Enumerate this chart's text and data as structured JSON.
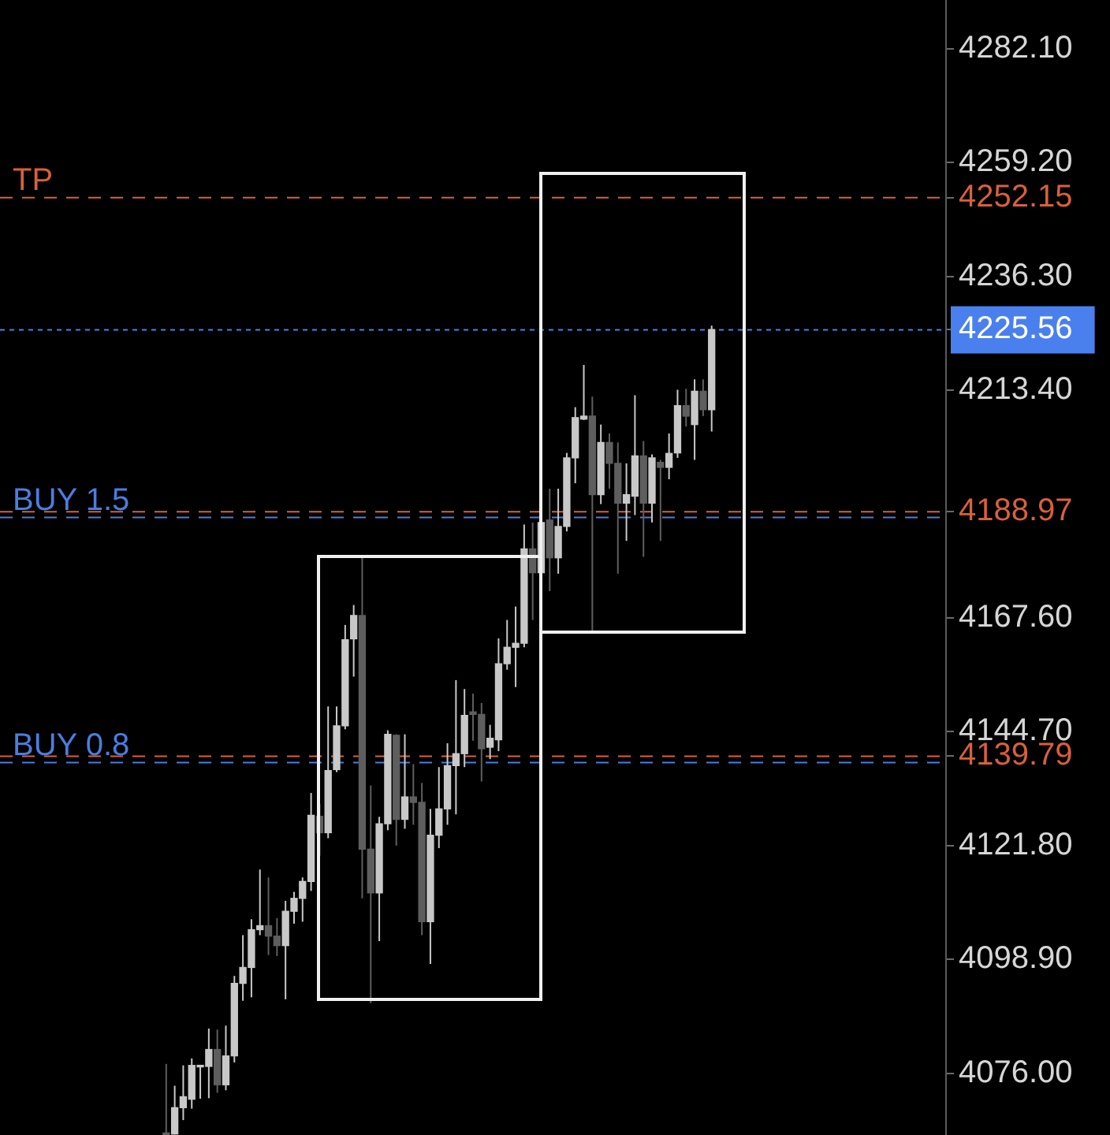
{
  "chart_data": {
    "type": "candlestick",
    "categories": [
      null,
      null,
      null,
      null,
      null,
      null,
      null,
      null,
      null,
      null,
      null,
      null,
      null,
      null,
      null,
      null,
      null,
      null,
      null,
      null,
      null,
      null,
      null,
      null,
      null,
      null,
      null,
      null,
      null,
      null,
      null,
      null,
      null,
      null,
      null,
      null,
      null,
      null,
      null,
      null,
      null,
      null,
      null,
      null,
      null,
      null,
      null,
      null,
      null,
      null,
      null,
      null,
      null,
      null,
      null,
      null,
      null,
      null,
      null,
      null,
      null,
      null,
      null,
      null,
      null,
      null,
      null,
      null,
      null,
      null,
      null,
      null,
      null,
      null,
      null,
      null,
      null,
      null,
      null,
      null,
      null,
      null,
      null,
      null,
      null,
      null,
      null,
      null,
      null,
      null,
      null,
      null,
      null,
      null,
      null,
      null,
      null,
      null,
      null,
      null,
      null,
      null,
      null,
      null,
      null,
      null,
      null,
      null,
      null,
      null,
      null
    ],
    "ohlc": [
      null,
      null,
      null,
      null,
      null,
      null,
      null,
      null,
      null,
      null,
      null,
      null,
      null,
      null,
      null,
      null,
      null,
      null,
      null,
      [
        4063.8,
        4077.9,
        4063.7,
        4063.7
      ],
      [
        4063.8,
        4073.5,
        4063.7,
        4069.1
      ],
      [
        4069.1,
        4077.6,
        4066.6,
        4071.3
      ],
      [
        4070.8,
        4079.0,
        4068.9,
        4077.6
      ],
      [
        4077.3,
        4077.6,
        4070.9,
        4077.5
      ],
      [
        4077.4,
        4085.0,
        4071.0,
        4080.8
      ],
      [
        4080.8,
        4084.8,
        4072.1,
        4073.7
      ],
      [
        4073.7,
        4085.6,
        4072.6,
        4079.5
      ],
      [
        4079.5,
        4095.6,
        4078.2,
        4094.1
      ],
      [
        4094.1,
        4103.8,
        4090.6,
        4097.3
      ],
      [
        4097.3,
        4107.0,
        4091.3,
        4104.9
      ],
      [
        4104.9,
        4117.0,
        4103.8,
        4105.7
      ],
      [
        4105.7,
        4115.4,
        4099.8,
        4103.6
      ],
      [
        4103.6,
        4107.2,
        4099.6,
        4101.7
      ],
      [
        4101.7,
        4110.7,
        4090.9,
        4108.6
      ],
      [
        4108.6,
        4112.5,
        4106.1,
        4111.2
      ],
      [
        4111.2,
        4115.4,
        4106.5,
        4114.6
      ],
      [
        4114.6,
        4132.4,
        4112.7,
        4127.9
      ],
      [
        4127.7,
        4130.2,
        4119.8,
        4124.4
      ],
      [
        4124.4,
        4149.8,
        4123.3,
        4136.9
      ],
      [
        4137.1,
        4149.8,
        4136.6,
        4145.9
      ],
      [
        4145.9,
        4166.2,
        4145.2,
        4163.2
      ],
      [
        4163.4,
        4170.2,
        4155.8,
        4168.1
      ],
      [
        4168.1,
        4179.7,
        4111.2,
        4121.1
      ],
      [
        4121.1,
        4133.9,
        4090.1,
        4112.3
      ],
      [
        4112.3,
        4127.6,
        4102.6,
        4126.2
      ],
      [
        4126.2,
        4145.0,
        4124.9,
        4144.2
      ],
      [
        4144.0,
        4144.2,
        4121.8,
        4127.1
      ],
      [
        4127.1,
        4144.2,
        4125.2,
        4131.6
      ],
      [
        4131.6,
        4138.2,
        4126.0,
        4130.5
      ],
      [
        4130.5,
        4134.4,
        4103.8,
        4106.5
      ],
      [
        4106.5,
        4129.2,
        4098.0,
        4123.9
      ],
      [
        4123.9,
        4137.6,
        4121.3,
        4129.2
      ],
      [
        4129.2,
        4142.4,
        4126.0,
        4137.9
      ],
      [
        4137.9,
        4155.1,
        4128.1,
        4140.3
      ],
      [
        4140.3,
        4153.3,
        4137.6,
        4148.0
      ],
      [
        4148.7,
        4152.4,
        4142.9,
        4148.2
      ],
      [
        4148.2,
        4150.5,
        4134.7,
        4141.3
      ],
      [
        4141.6,
        4146.1,
        4139.2,
        4143.4
      ],
      [
        4143.1,
        4163.5,
        4140.8,
        4158.4
      ],
      [
        4158.4,
        4167.2,
        4157.2,
        4161.7
      ],
      [
        4161.7,
        4169.9,
        4153.7,
        4162.5
      ],
      [
        4162.5,
        4186.4,
        4161.7,
        4181.5
      ],
      [
        4181.5,
        4186.8,
        4167.2,
        4176.7
      ],
      [
        4176.7,
        4187.8,
        4173.6,
        4186.8
      ],
      [
        4187.3,
        4193.6,
        4173.0,
        4179.7
      ],
      [
        4179.7,
        4193.6,
        4176.5,
        4186.0
      ],
      [
        4186.0,
        4200.8,
        4185.0,
        4199.8
      ],
      [
        4199.8,
        4210.0,
        4194.7,
        4207.9
      ],
      [
        4207.6,
        4218.5,
        4207.4,
        4208.2
      ],
      [
        4208.2,
        4212.1,
        4164.6,
        4192.4
      ],
      [
        4192.4,
        4206.5,
        4190.5,
        4202.9
      ],
      [
        4202.9,
        4204.7,
        4193.6,
        4198.7
      ],
      [
        4198.7,
        4202.9,
        4176.5,
        4190.7
      ],
      [
        4190.7,
        4198.7,
        4183.1,
        4192.4
      ],
      [
        4192.1,
        4212.4,
        4188.3,
        4200.2
      ],
      [
        4200.2,
        4203.2,
        4179.9,
        4190.7
      ],
      [
        4190.7,
        4200.5,
        4186.8,
        4199.8
      ],
      [
        4198.9,
        4199.4,
        4183.1,
        4197.9
      ],
      [
        4197.9,
        4204.7,
        4195.5,
        4200.7
      ],
      [
        4200.8,
        4213.5,
        4199.8,
        4210.3
      ],
      [
        4210.3,
        4213.7,
        4206.1,
        4208.2
      ],
      [
        4206.5,
        4215.6,
        4199.4,
        4213.2
      ],
      [
        4213.2,
        4215.6,
        4208.2,
        4209.5
      ],
      [
        4209.5,
        4226.4,
        4205.1,
        4225.6
      ],
      null,
      null,
      null,
      null,
      null,
      null,
      null,
      null,
      null,
      null,
      null,
      null,
      null,
      null,
      null,
      null,
      null,
      null,
      null,
      null,
      null,
      null,
      null,
      null,
      null,
      null,
      null
    ],
    "colors": [
      null,
      null,
      null,
      null,
      null,
      null,
      null,
      null,
      null,
      null,
      null,
      null,
      null,
      null,
      null,
      null,
      null,
      null,
      null,
      "#5e5e5e",
      "#c8c8c8",
      "#c8c8c8",
      "#c8c8c8",
      "#c8c8c8",
      "#c8c8c8",
      "#5e5e5e",
      "#c8c8c8",
      "#c8c8c8",
      "#c8c8c8",
      "#c8c8c8",
      "#c8c8c8",
      "#5e5e5e",
      "#5e5e5e",
      "#c8c8c8",
      "#c8c8c8",
      "#c8c8c8",
      "#c8c8c8",
      "#5e5e5e",
      "#c8c8c8",
      "#c8c8c8",
      "#c8c8c8",
      "#c8c8c8",
      "#5e5e5e",
      "#5e5e5e",
      "#c8c8c8",
      "#c8c8c8",
      "#5e5e5e",
      "#c8c8c8",
      "#5e5e5e",
      "#5e5e5e",
      "#c8c8c8",
      "#c8c8c8",
      "#c8c8c8",
      "#c8c8c8",
      "#c8c8c8",
      "#5e5e5e",
      "#5e5e5e",
      "#c8c8c8",
      "#c8c8c8",
      "#c8c8c8",
      "#c8c8c8",
      "#c8c8c8",
      "#5e5e5e",
      "#c8c8c8",
      "#5e5e5e",
      "#c8c8c8",
      "#c8c8c8",
      "#c8c8c8",
      "#c8c8c8",
      "#5e5e5e",
      "#c8c8c8",
      "#5e5e5e",
      "#5e5e5e",
      "#c8c8c8",
      "#c8c8c8",
      "#5e5e5e",
      "#c8c8c8",
      "#5e5e5e",
      "#c8c8c8",
      "#c8c8c8",
      "#5e5e5e",
      "#c8c8c8",
      "#5e5e5e",
      "#c8c8c8",
      null,
      null,
      null,
      null,
      null,
      null,
      null,
      null,
      null,
      null,
      null,
      null,
      null,
      null,
      null,
      null,
      null,
      null,
      null,
      null,
      null,
      null,
      null,
      null,
      null,
      null,
      null
    ],
    "ylim": [
      4063.6,
      4291.9
    ],
    "yticks": [
      {
        "value": 4282.1,
        "label": "4282.10"
      },
      {
        "value": 4259.2,
        "label": "4259.20"
      },
      4252.15,
      {
        "value": 4236.3,
        "label": "4236.30"
      },
      4225.56,
      {
        "value": 4213.4,
        "label": "4213.40"
      },
      4188.97,
      {
        "value": 4167.6,
        "label": "4167.60"
      },
      {
        "value": 4144.7,
        "label": "4144.70"
      },
      4139.79,
      {
        "value": 4121.8,
        "label": "4121.80"
      },
      {
        "value": 4098.9,
        "label": "4098.90"
      },
      {
        "value": 4076,
        "label": "4076.00"
      }
    ],
    "tick_labels": "y",
    "ref_lines": [
      {
        "axis": "y",
        "value": 4252.15,
        "label": "TP",
        "color": "#d9603b",
        "line_style": "dashed"
      },
      {
        "axis": "y",
        "value": 4225.56,
        "color": "#4a80ee",
        "line_style": "dotted"
      },
      {
        "axis": "y",
        "value": 4188.97,
        "color": "#d9603b",
        "line_style": "dashed"
      },
      {
        "axis": "y",
        "value": 4187.8,
        "label": "BUY 1.5",
        "color": "#4a7ee0",
        "line_style": "dashed"
      },
      {
        "axis": "y",
        "value": 4139.79,
        "color": "#d9603b",
        "line_style": "dashed"
      },
      {
        "axis": "y",
        "value": 4138.5,
        "label": "BUY 0.8",
        "color": "#4a7ee0",
        "line_style": "dashed"
      }
    ]
  }
}
